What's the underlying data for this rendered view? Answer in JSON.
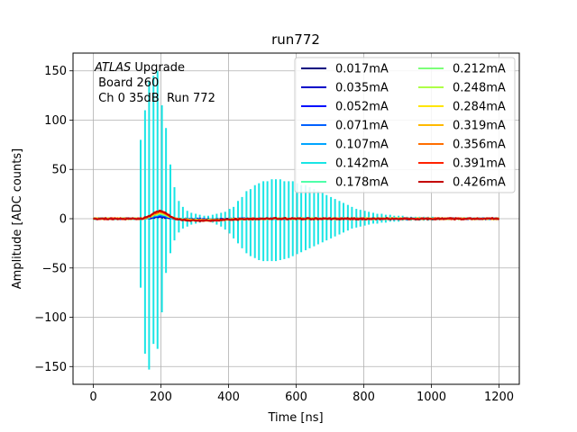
{
  "chart_data": {
    "type": "line",
    "title": "run772",
    "xlabel": "Time [ns]",
    "ylabel": "Amplitude [ADC counts]",
    "xlim": [
      -60,
      1260
    ],
    "ylim": [
      -168,
      168
    ],
    "xticks": [
      0,
      200,
      400,
      600,
      800,
      1000,
      1200
    ],
    "yticks": [
      -150,
      -100,
      -50,
      0,
      50,
      100,
      150
    ],
    "grid": true,
    "legend_position": "top-right",
    "legend_columns": 2,
    "annotation": {
      "line1_italic": "ATLAS",
      "line1_rest": " Upgrade",
      "line2": " Board 260",
      "line3": " Ch 0 35dB  Run 772"
    },
    "series": [
      {
        "name": "0.017mA",
        "color": "#00007f",
        "peak_y": 1.5
      },
      {
        "name": "0.035mA",
        "color": "#0000c8",
        "peak_y": 2.0
      },
      {
        "name": "0.052mA",
        "color": "#0010ff",
        "peak_y": 2.5
      },
      {
        "name": "0.071mA",
        "color": "#0060ff",
        "peak_y": 3.0
      },
      {
        "name": "0.107mA",
        "color": "#00a4ff",
        "peak_y": 3.5
      },
      {
        "name": "0.142mA",
        "color": "#19e5e5",
        "peak_y": 4.0,
        "spike_x": [
          140,
          153,
          165,
          178,
          190,
          203,
          215,
          228,
          240,
          253,
          265,
          278,
          290,
          303,
          315,
          328,
          340,
          353,
          365,
          378,
          390,
          403,
          415,
          428,
          440,
          453,
          465,
          478,
          490,
          503,
          515,
          528,
          540,
          553,
          565,
          578,
          590,
          603,
          615,
          628,
          640,
          653,
          665,
          678,
          690,
          703,
          715,
          728,
          740,
          753,
          765,
          778,
          790,
          803,
          815,
          828,
          840,
          853,
          865,
          878,
          890,
          903,
          915,
          928,
          940,
          953,
          965,
          978,
          990,
          1003
        ],
        "spike_y": [
          80,
          110,
          140,
          145,
          150,
          115,
          92,
          55,
          32,
          18,
          12,
          8,
          6,
          5,
          4,
          3,
          3,
          4,
          5,
          6,
          7,
          10,
          12,
          18,
          22,
          28,
          30,
          34,
          36,
          38,
          38,
          40,
          40,
          40,
          38,
          38,
          38,
          36,
          34,
          34,
          32,
          30,
          28,
          26,
          24,
          22,
          20,
          18,
          16,
          14,
          12,
          10,
          9,
          8,
          7,
          6,
          5,
          5,
          4,
          4,
          3,
          3,
          3,
          2,
          2,
          2,
          2,
          2,
          2,
          2
        ],
        "trough_y": [
          -70,
          -137,
          -153,
          -127,
          -132,
          -95,
          -55,
          -35,
          -22,
          -14,
          -10,
          -8,
          -6,
          -5,
          -4,
          -3,
          -3,
          -4,
          -6,
          -8,
          -11,
          -15,
          -20,
          -25,
          -30,
          -35,
          -38,
          -40,
          -42,
          -43,
          -43,
          -43,
          -43,
          -42,
          -41,
          -40,
          -38,
          -36,
          -34,
          -32,
          -30,
          -28,
          -26,
          -24,
          -22,
          -20,
          -18,
          -16,
          -14,
          -12,
          -10,
          -9,
          -8,
          -7,
          -6,
          -5,
          -5,
          -4,
          -4,
          -3,
          -3,
          -3,
          -2,
          -2,
          -2,
          -2,
          -2,
          -2,
          -2,
          -2
        ]
      },
      {
        "name": "0.178mA",
        "color": "#4effa9",
        "peak_y": 4.5
      },
      {
        "name": "0.212mA",
        "color": "#7cff79",
        "peak_y": 5.0
      },
      {
        "name": "0.248mA",
        "color": "#aeff47",
        "peak_y": 5.5
      },
      {
        "name": "0.284mA",
        "color": "#ffe500",
        "peak_y": 6.0
      },
      {
        "name": "0.319mA",
        "color": "#ffb900",
        "peak_y": 6.5
      },
      {
        "name": "0.356mA",
        "color": "#ff6e00",
        "peak_y": 7.0
      },
      {
        "name": "0.391mA",
        "color": "#ff2200",
        "peak_y": 7.5
      },
      {
        "name": "0.426mA",
        "color": "#c40000",
        "peak_y": 8.0
      }
    ]
  }
}
